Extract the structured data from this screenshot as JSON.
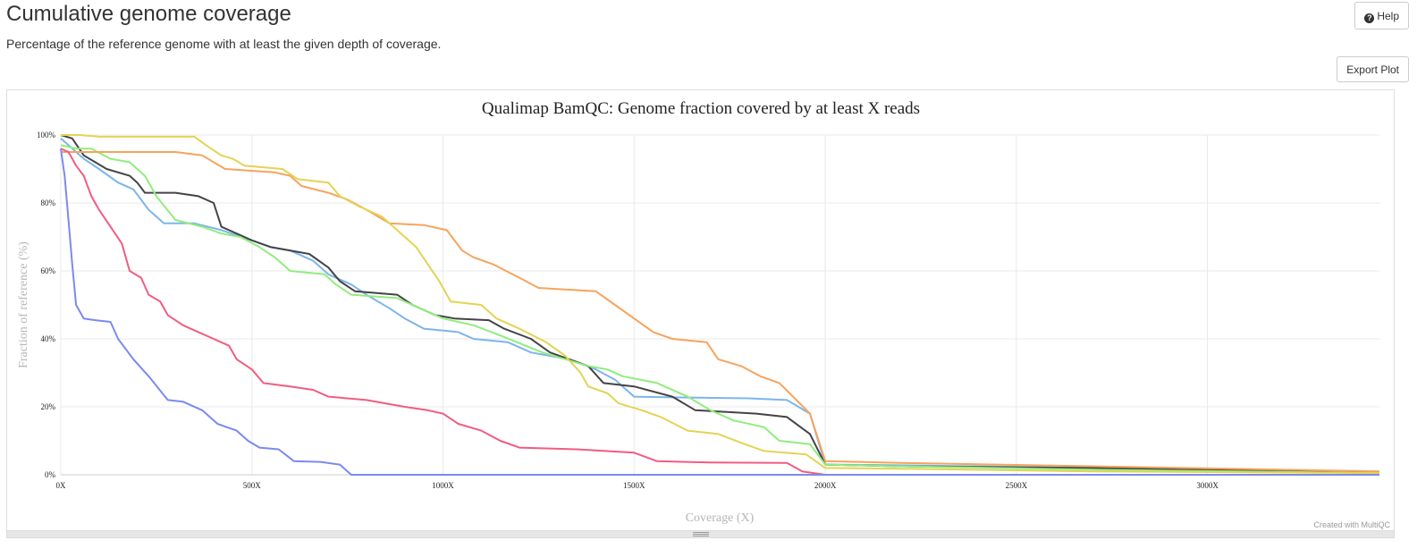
{
  "section": {
    "title": "Cumulative genome coverage",
    "description": "Percentage of the reference genome with at least the given depth of coverage."
  },
  "buttons": {
    "help_label": "Help",
    "help_icon": "question-circle-icon",
    "export_label": "Export Plot"
  },
  "credit": "Created with MultiQC",
  "chart_data": {
    "type": "line",
    "title": "Qualimap BamQC: Genome fraction covered by at least X reads",
    "xlabel": "Coverage (X)",
    "ylabel": "Fraction of reference (%)",
    "xlim": [
      0,
      3450
    ],
    "ylim": [
      0,
      100
    ],
    "x_ticks": [
      0,
      500,
      1000,
      1500,
      2000,
      2500,
      3000
    ],
    "x_tick_labels": [
      "0X",
      "500X",
      "1000X",
      "1500X",
      "2000X",
      "2500X",
      "3000X"
    ],
    "y_ticks": [
      0,
      20,
      40,
      60,
      80,
      100
    ],
    "y_tick_labels": [
      "0%",
      "20%",
      "40%",
      "60%",
      "80%",
      "100%"
    ],
    "grid": true,
    "series": [
      {
        "color": "#7cb5ec",
        "points": [
          [
            0,
            99
          ],
          [
            20,
            97
          ],
          [
            60,
            93
          ],
          [
            100,
            90
          ],
          [
            150,
            86
          ],
          [
            190,
            84
          ],
          [
            230,
            78
          ],
          [
            270,
            74
          ],
          [
            350,
            74
          ],
          [
            420,
            72
          ],
          [
            500,
            69
          ],
          [
            550,
            67
          ],
          [
            600,
            66
          ],
          [
            660,
            63
          ],
          [
            700,
            59
          ],
          [
            760,
            56
          ],
          [
            800,
            53
          ],
          [
            860,
            49
          ],
          [
            900,
            46
          ],
          [
            950,
            43
          ],
          [
            1040,
            42
          ],
          [
            1080,
            40
          ],
          [
            1170,
            39
          ],
          [
            1230,
            36
          ],
          [
            1330,
            34
          ],
          [
            1400,
            31
          ],
          [
            1450,
            28
          ],
          [
            1500,
            23
          ],
          [
            1600,
            22.8
          ],
          [
            1800,
            22.5
          ],
          [
            1900,
            22
          ],
          [
            1960,
            18
          ],
          [
            2000,
            3
          ],
          [
            2200,
            2.8
          ],
          [
            2700,
            2
          ],
          [
            3450,
            1
          ]
        ]
      },
      {
        "color": "#434348",
        "points": [
          [
            0,
            100
          ],
          [
            30,
            99
          ],
          [
            60,
            94
          ],
          [
            90,
            92
          ],
          [
            120,
            90
          ],
          [
            180,
            88
          ],
          [
            200,
            86
          ],
          [
            220,
            83
          ],
          [
            300,
            83
          ],
          [
            360,
            82
          ],
          [
            400,
            80
          ],
          [
            420,
            73
          ],
          [
            460,
            71
          ],
          [
            500,
            69
          ],
          [
            550,
            67
          ],
          [
            650,
            65
          ],
          [
            700,
            61
          ],
          [
            730,
            57
          ],
          [
            770,
            54
          ],
          [
            880,
            53
          ],
          [
            920,
            50
          ],
          [
            980,
            47
          ],
          [
            1030,
            46
          ],
          [
            1120,
            45.5
          ],
          [
            1160,
            43
          ],
          [
            1230,
            40
          ],
          [
            1280,
            36
          ],
          [
            1380,
            32
          ],
          [
            1420,
            27
          ],
          [
            1500,
            26
          ],
          [
            1600,
            23
          ],
          [
            1660,
            19
          ],
          [
            1820,
            18
          ],
          [
            1900,
            17
          ],
          [
            1960,
            12
          ],
          [
            2000,
            3
          ],
          [
            2200,
            2.5
          ],
          [
            2700,
            2
          ],
          [
            3450,
            0.5
          ]
        ]
      },
      {
        "color": "#90ed7d",
        "points": [
          [
            0,
            97
          ],
          [
            40,
            96
          ],
          [
            80,
            96
          ],
          [
            130,
            93
          ],
          [
            180,
            92
          ],
          [
            220,
            88
          ],
          [
            250,
            82
          ],
          [
            300,
            75
          ],
          [
            370,
            73
          ],
          [
            420,
            71
          ],
          [
            470,
            70
          ],
          [
            520,
            67
          ],
          [
            560,
            64
          ],
          [
            600,
            60
          ],
          [
            690,
            59
          ],
          [
            720,
            56
          ],
          [
            760,
            53
          ],
          [
            880,
            52
          ],
          [
            940,
            49
          ],
          [
            1000,
            46
          ],
          [
            1080,
            44
          ],
          [
            1150,
            41
          ],
          [
            1260,
            36
          ],
          [
            1380,
            32
          ],
          [
            1430,
            31
          ],
          [
            1470,
            29
          ],
          [
            1560,
            27
          ],
          [
            1640,
            23
          ],
          [
            1700,
            19
          ],
          [
            1760,
            16
          ],
          [
            1840,
            14
          ],
          [
            1880,
            10
          ],
          [
            1960,
            9
          ],
          [
            2000,
            3
          ],
          [
            2200,
            2.5
          ],
          [
            2700,
            1.5
          ],
          [
            3450,
            0.5
          ]
        ]
      },
      {
        "color": "#f7a35c",
        "points": [
          [
            0,
            95
          ],
          [
            100,
            95
          ],
          [
            200,
            95
          ],
          [
            300,
            95
          ],
          [
            370,
            94
          ],
          [
            430,
            90
          ],
          [
            560,
            89
          ],
          [
            600,
            88
          ],
          [
            630,
            85
          ],
          [
            700,
            83
          ],
          [
            750,
            81
          ],
          [
            800,
            78
          ],
          [
            860,
            74
          ],
          [
            950,
            73.5
          ],
          [
            1010,
            72
          ],
          [
            1050,
            66
          ],
          [
            1080,
            64
          ],
          [
            1130,
            62
          ],
          [
            1200,
            58
          ],
          [
            1250,
            55
          ],
          [
            1400,
            54
          ],
          [
            1450,
            50
          ],
          [
            1500,
            46
          ],
          [
            1550,
            42
          ],
          [
            1600,
            40
          ],
          [
            1690,
            39
          ],
          [
            1720,
            34
          ],
          [
            1780,
            32
          ],
          [
            1830,
            29
          ],
          [
            1880,
            27
          ],
          [
            1960,
            18
          ],
          [
            2000,
            4
          ],
          [
            2200,
            3.5
          ],
          [
            2700,
            2.5
          ],
          [
            3450,
            1
          ]
        ]
      },
      {
        "color": "#f15c80",
        "points": [
          [
            0,
            96
          ],
          [
            20,
            95
          ],
          [
            40,
            91
          ],
          [
            60,
            88
          ],
          [
            80,
            82
          ],
          [
            100,
            78
          ],
          [
            130,
            73
          ],
          [
            160,
            68
          ],
          [
            180,
            60
          ],
          [
            210,
            58
          ],
          [
            230,
            53
          ],
          [
            260,
            51
          ],
          [
            280,
            47
          ],
          [
            320,
            44
          ],
          [
            360,
            42
          ],
          [
            400,
            40
          ],
          [
            440,
            38
          ],
          [
            460,
            34
          ],
          [
            500,
            31
          ],
          [
            530,
            27
          ],
          [
            600,
            26
          ],
          [
            660,
            25
          ],
          [
            700,
            23
          ],
          [
            800,
            22
          ],
          [
            900,
            20
          ],
          [
            960,
            19
          ],
          [
            1000,
            18
          ],
          [
            1040,
            15
          ],
          [
            1100,
            13
          ],
          [
            1150,
            10
          ],
          [
            1200,
            8
          ],
          [
            1350,
            7.5
          ],
          [
            1500,
            6.5
          ],
          [
            1560,
            4
          ],
          [
            1700,
            3.6
          ],
          [
            1900,
            3.5
          ],
          [
            1940,
            1
          ],
          [
            2000,
            0
          ],
          [
            3450,
            0
          ]
        ]
      },
      {
        "color": "#e4d354",
        "points": [
          [
            0,
            100
          ],
          [
            50,
            100
          ],
          [
            100,
            99.5
          ],
          [
            200,
            99.5
          ],
          [
            350,
            99.5
          ],
          [
            380,
            97
          ],
          [
            420,
            94
          ],
          [
            450,
            93
          ],
          [
            480,
            91
          ],
          [
            580,
            90
          ],
          [
            620,
            87
          ],
          [
            700,
            86
          ],
          [
            730,
            82
          ],
          [
            780,
            79
          ],
          [
            840,
            76
          ],
          [
            880,
            72
          ],
          [
            900,
            70
          ],
          [
            930,
            67
          ],
          [
            960,
            62
          ],
          [
            990,
            57
          ],
          [
            1020,
            51
          ],
          [
            1100,
            50
          ],
          [
            1140,
            46
          ],
          [
            1200,
            43
          ],
          [
            1270,
            39
          ],
          [
            1320,
            35
          ],
          [
            1360,
            30
          ],
          [
            1380,
            26
          ],
          [
            1430,
            24
          ],
          [
            1460,
            21
          ],
          [
            1520,
            19
          ],
          [
            1570,
            17
          ],
          [
            1640,
            13
          ],
          [
            1720,
            12
          ],
          [
            1790,
            9
          ],
          [
            1840,
            7
          ],
          [
            1950,
            6
          ],
          [
            2000,
            2
          ],
          [
            2200,
            1.8
          ],
          [
            2700,
            1
          ],
          [
            3450,
            0.5
          ]
        ]
      },
      {
        "color": "#7a8aee",
        "points": [
          [
            0,
            96
          ],
          [
            10,
            88
          ],
          [
            20,
            75
          ],
          [
            30,
            62
          ],
          [
            40,
            50
          ],
          [
            60,
            46
          ],
          [
            90,
            45.5
          ],
          [
            130,
            45
          ],
          [
            150,
            40
          ],
          [
            190,
            34
          ],
          [
            230,
            29
          ],
          [
            280,
            22
          ],
          [
            320,
            21.5
          ],
          [
            370,
            19
          ],
          [
            410,
            15
          ],
          [
            460,
            13
          ],
          [
            490,
            10
          ],
          [
            520,
            8
          ],
          [
            570,
            7.5
          ],
          [
            610,
            4
          ],
          [
            680,
            3.8
          ],
          [
            730,
            3
          ],
          [
            760,
            0
          ],
          [
            1000,
            0
          ],
          [
            2000,
            0
          ],
          [
            3450,
            0
          ]
        ]
      }
    ]
  }
}
